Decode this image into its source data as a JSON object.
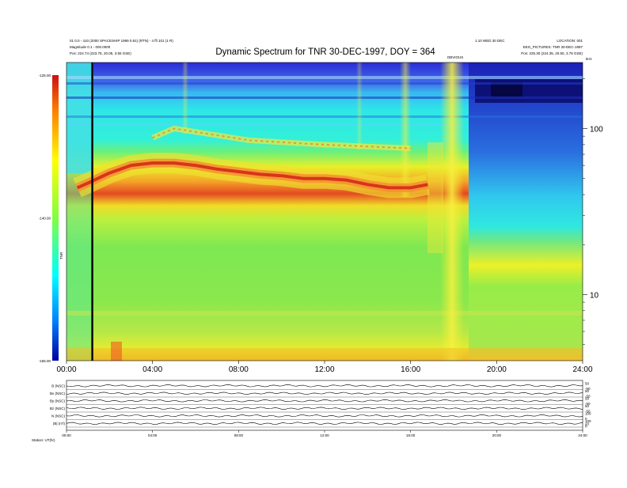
{
  "chart_data": [
    {
      "type": "heatmap",
      "title": "Dynamic Spectrum for TNR 30-DEC-1997, DOY = 364",
      "header_left": [
        "01 0.0 - 410 (2000 SPACESHIP 1999 0.81) (RTN) - 4 ffi 101 (1 R)",
        "Magnitude 0.1 - 000.0000",
        "Pos: 224.74 (223.75, 20.05, 3.55 GSE)"
      ],
      "header_right": [
        "1.10 WED 30 DEC",
        "LOCATION: 001",
        "EEG_PICTURES: TNR 30-DEC-1997",
        "Pos: 225.30 (224.35, 20.50, 3.76 GSE)"
      ],
      "event_label": "OBVIOUS",
      "x_ticks": [
        "00:00",
        "04:00",
        "08:00",
        "12:00",
        "16:00",
        "20:00",
        "24:00"
      ],
      "x_range_hours": [
        0,
        24
      ],
      "y_right_label": "kHz",
      "y_right_ticks": [
        "100",
        "10"
      ],
      "y_right_tick_values": [
        100,
        10
      ],
      "y_right_range_khz": [
        4,
        250
      ],
      "colorbar_label": "TNR",
      "colorbar_ticks": [
        "-125.00",
        "-140.00",
        "-155.00"
      ],
      "colorbar_range": [
        -155,
        -125
      ],
      "features": [
        {
          "name": "plasma line",
          "times_h": [
            0.5,
            1,
            2,
            3,
            4,
            5,
            6,
            7,
            8,
            9,
            10,
            11,
            12,
            13,
            14,
            15,
            16,
            16.8
          ],
          "freq_khz": [
            44,
            47,
            54,
            60,
            62,
            62,
            60,
            57,
            55,
            53,
            52,
            50,
            50,
            49,
            46,
            44,
            44,
            46
          ]
        },
        {
          "name": "harmonic",
          "times_h": [
            4.0,
            5.0,
            8.5,
            10.5,
            12,
            14,
            16
          ],
          "freq_khz": [
            88,
            100,
            85,
            82,
            80,
            78,
            76
          ]
        }
      ],
      "vertical_marker_h": 1.2
    },
    {
      "type": "line",
      "panels": [
        {
          "label": "B (NSC)",
          "right_ticks": [
            "50",
            "-50"
          ]
        },
        {
          "label": "Bx (NSC)",
          "right_ticks": [
            "50",
            "-50"
          ]
        },
        {
          "label": "By (NSC)",
          "right_ticks": [
            "50",
            "-50"
          ]
        },
        {
          "label": "Bz (NSC)",
          "right_ticks": [
            "50",
            "-50"
          ]
        },
        {
          "label": "N (NSC)",
          "right_ticks": [
            "100",
            "0"
          ]
        },
        {
          "label": "|B| (nT)",
          "right_ticks": [
            "100",
            "20",
            "0"
          ]
        }
      ],
      "x_ticks": [
        "00:00",
        "04:00",
        "08:00",
        "12:00",
        "16:00",
        "20:00",
        "24:00"
      ],
      "footer": "Station: UT(hr)"
    }
  ]
}
